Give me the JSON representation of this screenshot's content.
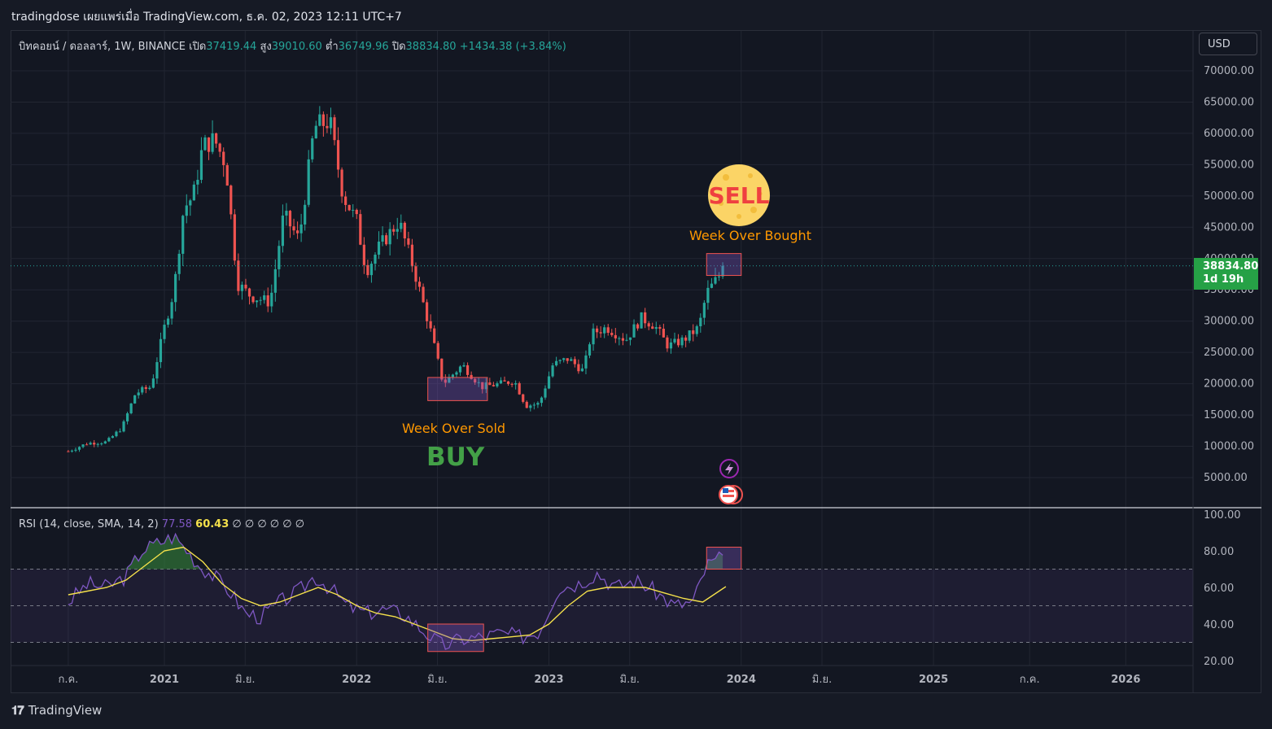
{
  "header": {
    "title": "tradingdose เผยแพร่เมื่อ TradingView.com, ธ.ค. 02, 2023 12:11 UTC+7"
  },
  "symbol": {
    "name": "บิทคอยน์ / ดอลลาร์, 1W, BINANCE",
    "open_label": "เปิด",
    "open": "37419.44",
    "high_label": "สูง",
    "high": "39010.60",
    "low_label": "ต่ำ",
    "low": "36749.96",
    "close_label": "ปิด",
    "close": "38834.80",
    "change": "+1434.38 (+3.84%)"
  },
  "currency": "USD",
  "last_price": {
    "value": "38834.80",
    "countdown": "1d 19h"
  },
  "annotations": {
    "sell": "SELL",
    "over_bought": "Week Over Bought",
    "over_sold": "Week Over Sold",
    "buy": "BUY"
  },
  "rsi_legend": {
    "label": "RSI (14, close, SMA, 14, 2)",
    "rsi": "77.58",
    "sma": "60.43",
    "extra": "∅ ∅ ∅ ∅ ∅ ∅"
  },
  "footer": {
    "brand": "TradingView",
    "logo": "tradingview-logo"
  },
  "colors": {
    "up": "#26a69a",
    "down": "#ef5350",
    "rsi": "#7e57c2",
    "sma": "#f5e14b",
    "price_tag": "#26a146"
  },
  "chart_data": [
    {
      "type": "candlestick",
      "timeframe": "1W",
      "y_axis": {
        "min": 0,
        "max": 70000,
        "ticks": [
          5000,
          10000,
          15000,
          20000,
          25000,
          30000,
          35000,
          40000,
          45000,
          50000,
          55000,
          60000,
          65000,
          70000
        ]
      },
      "x_axis": {
        "ticks": [
          "ก.ค.",
          "2021",
          "มิ.ย.",
          "2022",
          "มิ.ย.",
          "2023",
          "มิ.ย.",
          "2024",
          "มิ.ย.",
          "2025",
          "ก.ค.",
          "2026"
        ]
      },
      "path": [
        [
          2020.5,
          9200
        ],
        [
          2020.6,
          10500
        ],
        [
          2020.7,
          10700
        ],
        [
          2020.78,
          13000
        ],
        [
          2020.85,
          18500
        ],
        [
          2020.93,
          19500
        ],
        [
          2021.0,
          29000
        ],
        [
          2021.05,
          35000
        ],
        [
          2021.1,
          48000
        ],
        [
          2021.15,
          50000
        ],
        [
          2021.2,
          58000
        ],
        [
          2021.26,
          59000
        ],
        [
          2021.32,
          55000
        ],
        [
          2021.38,
          36000
        ],
        [
          2021.45,
          34000
        ],
        [
          2021.55,
          33000
        ],
        [
          2021.62,
          47000
        ],
        [
          2021.7,
          43000
        ],
        [
          2021.78,
          61000
        ],
        [
          2021.86,
          62000
        ],
        [
          2021.93,
          50000
        ],
        [
          2022.0,
          46000
        ],
        [
          2022.05,
          38000
        ],
        [
          2022.12,
          42000
        ],
        [
          2022.22,
          46000
        ],
        [
          2022.3,
          38000
        ],
        [
          2022.38,
          29000
        ],
        [
          2022.45,
          20000
        ],
        [
          2022.55,
          23000
        ],
        [
          2022.65,
          19500
        ],
        [
          2022.75,
          20000
        ],
        [
          2022.82,
          20500
        ],
        [
          2022.88,
          16500
        ],
        [
          2022.95,
          16800
        ],
        [
          2023.02,
          23000
        ],
        [
          2023.1,
          24000
        ],
        [
          2023.18,
          22000
        ],
        [
          2023.22,
          28000
        ],
        [
          2023.3,
          29000
        ],
        [
          2023.4,
          27000
        ],
        [
          2023.48,
          30500
        ],
        [
          2023.55,
          29300
        ],
        [
          2023.62,
          26000
        ],
        [
          2023.7,
          27000
        ],
        [
          2023.78,
          29000
        ],
        [
          2023.82,
          34500
        ],
        [
          2023.88,
          37000
        ],
        [
          2023.92,
          38834.8
        ]
      ],
      "last": 38834.8
    },
    {
      "type": "line",
      "title": "RSI (14, close, SMA, 14, 2)",
      "y_axis": {
        "ticks": [
          20,
          40,
          60,
          80,
          100
        ]
      },
      "bands": [
        30,
        50,
        70
      ],
      "series": [
        {
          "name": "RSI",
          "values": [
            [
              2020.5,
              52
            ],
            [
              2020.6,
              62
            ],
            [
              2020.7,
              60
            ],
            [
              2020.8,
              66
            ],
            [
              2020.88,
              80
            ],
            [
              2020.96,
              84
            ],
            [
              2021.05,
              88
            ],
            [
              2021.12,
              80
            ],
            [
              2021.18,
              72
            ],
            [
              2021.26,
              66
            ],
            [
              2021.34,
              58
            ],
            [
              2021.42,
              46
            ],
            [
              2021.5,
              44
            ],
            [
              2021.6,
              52
            ],
            [
              2021.7,
              58
            ],
            [
              2021.78,
              66
            ],
            [
              2021.86,
              60
            ],
            [
              2021.95,
              50
            ],
            [
              2022.05,
              46
            ],
            [
              2022.15,
              48
            ],
            [
              2022.25,
              45
            ],
            [
              2022.35,
              36
            ],
            [
              2022.45,
              28
            ],
            [
              2022.55,
              32
            ],
            [
              2022.65,
              33
            ],
            [
              2022.75,
              35
            ],
            [
              2022.85,
              33
            ],
            [
              2022.95,
              36
            ],
            [
              2023.05,
              60
            ],
            [
              2023.15,
              62
            ],
            [
              2023.25,
              68
            ],
            [
              2023.35,
              60
            ],
            [
              2023.45,
              64
            ],
            [
              2023.55,
              58
            ],
            [
              2023.65,
              50
            ],
            [
              2023.75,
              52
            ],
            [
              2023.82,
              72
            ],
            [
              2023.92,
              77.58
            ]
          ]
        },
        {
          "name": "SMA",
          "values": [
            [
              2020.5,
              56
            ],
            [
              2020.6,
              58
            ],
            [
              2020.7,
              60
            ],
            [
              2020.8,
              64
            ],
            [
              2020.9,
              72
            ],
            [
              2021.0,
              80
            ],
            [
              2021.1,
              82
            ],
            [
              2021.2,
              74
            ],
            [
              2021.3,
              62
            ],
            [
              2021.4,
              54
            ],
            [
              2021.5,
              50
            ],
            [
              2021.6,
              52
            ],
            [
              2021.7,
              56
            ],
            [
              2021.8,
              60
            ],
            [
              2021.9,
              56
            ],
            [
              2022.0,
              50
            ],
            [
              2022.1,
              46
            ],
            [
              2022.2,
              44
            ],
            [
              2022.3,
              40
            ],
            [
              2022.4,
              36
            ],
            [
              2022.5,
              32
            ],
            [
              2022.6,
              31
            ],
            [
              2022.7,
              32
            ],
            [
              2022.8,
              33
            ],
            [
              2022.9,
              34
            ],
            [
              2023.0,
              40
            ],
            [
              2023.1,
              50
            ],
            [
              2023.2,
              58
            ],
            [
              2023.3,
              60
            ],
            [
              2023.4,
              60
            ],
            [
              2023.5,
              60
            ],
            [
              2023.6,
              57
            ],
            [
              2023.7,
              54
            ],
            [
              2023.8,
              52
            ],
            [
              2023.92,
              60.43
            ]
          ]
        }
      ]
    }
  ]
}
